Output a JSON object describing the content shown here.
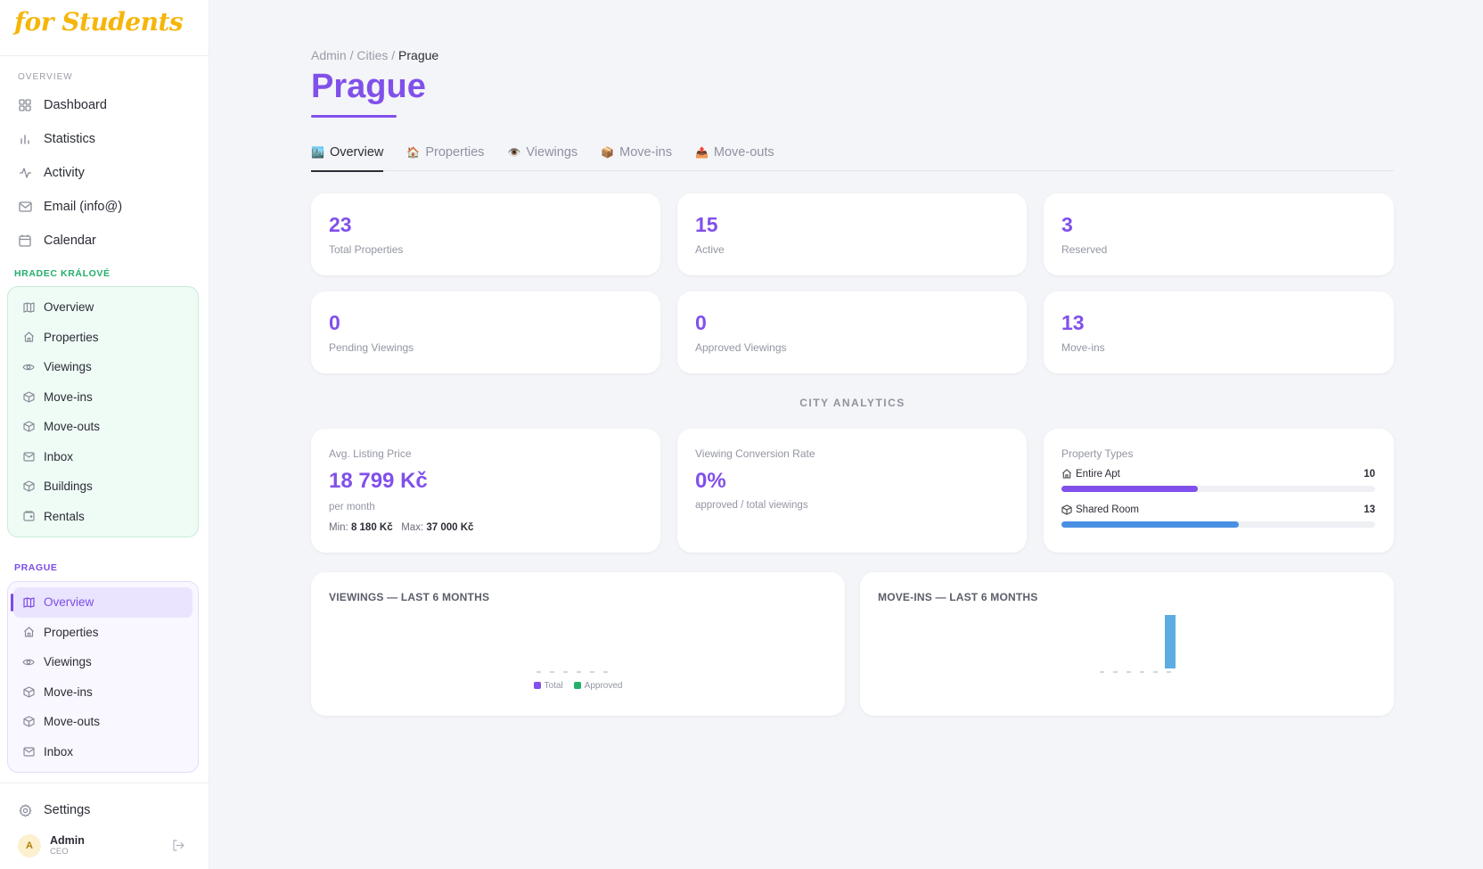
{
  "app": {
    "logo_text": "for Students"
  },
  "sidebar": {
    "overview_label": "OVERVIEW",
    "main_items": [
      {
        "label": "Dashboard",
        "icon": "grid-icon"
      },
      {
        "label": "Statistics",
        "icon": "bar-chart-icon"
      },
      {
        "label": "Activity",
        "icon": "activity-icon"
      },
      {
        "label": "Email (info@)",
        "icon": "mail-icon"
      },
      {
        "label": "Calendar",
        "icon": "calendar-icon"
      }
    ],
    "groups": [
      {
        "label": "HRADEC KRÁLOVÉ",
        "color": "#22b06b",
        "items": [
          "Overview",
          "Properties",
          "Viewings",
          "Move-ins",
          "Move-outs",
          "Inbox",
          "Buildings",
          "Rentals"
        ]
      },
      {
        "label": "PRAGUE",
        "color": "#7c4ce8",
        "active_item": "Overview",
        "items": [
          "Overview",
          "Properties",
          "Viewings",
          "Move-ins",
          "Move-outs",
          "Inbox"
        ]
      }
    ],
    "settings_label": "Settings",
    "user": {
      "initial": "A",
      "name": "Admin",
      "role": "CEO"
    }
  },
  "breadcrumb": {
    "part1": "Admin /",
    "part2": "Cities /",
    "current": "Prague"
  },
  "page": {
    "title": "Prague"
  },
  "tabs": [
    {
      "label": "Overview",
      "emoji": "🏙️",
      "active": true
    },
    {
      "label": "Properties",
      "emoji": "🏠",
      "active": false
    },
    {
      "label": "Viewings",
      "emoji": "👁️",
      "active": false
    },
    {
      "label": "Move-ins",
      "emoji": "📦",
      "active": false
    },
    {
      "label": "Move-outs",
      "emoji": "📤",
      "active": false
    }
  ],
  "stats": [
    {
      "value": "23",
      "label": "Total Properties"
    },
    {
      "value": "15",
      "label": "Active"
    },
    {
      "value": "3",
      "label": "Reserved"
    },
    {
      "value": "0",
      "label": "Pending Viewings"
    },
    {
      "value": "0",
      "label": "Approved Viewings"
    },
    {
      "value": "13",
      "label": "Move-ins"
    }
  ],
  "analytics": {
    "heading": "CITY ANALYTICS",
    "avg_price": {
      "title": "Avg. Listing Price",
      "value": "18 799 Kč",
      "sub": "per month",
      "min_label": "Min:",
      "min_value": "8 180 Kč",
      "max_label": "Max:",
      "max_value": "37 000 Kč"
    },
    "conversion": {
      "title": "Viewing Conversion Rate",
      "value": "0%",
      "sub": "approved / total viewings"
    },
    "property_types": {
      "title": "Property Types",
      "rows": [
        {
          "label": "Entire Apt",
          "count": "10",
          "fraction": 0.435,
          "color": "#8150eb",
          "icon": "home-icon"
        },
        {
          "label": "Shared Room",
          "count": "13",
          "fraction": 0.565,
          "color": "#4a90e2",
          "icon": "box-icon"
        }
      ]
    }
  },
  "colors": {
    "accent": "#8150eb",
    "green": "#22b06b",
    "blue": "#5dade2"
  },
  "chart_data": [
    {
      "type": "bar",
      "title": "VIEWINGS — LAST 6 MONTHS",
      "categories": [
        "",
        "",
        "",
        "",
        "",
        ""
      ],
      "series": [
        {
          "name": "Total",
          "values": [
            0,
            0,
            0,
            0,
            0,
            0
          ],
          "color": "#8150eb"
        },
        {
          "name": "Approved",
          "values": [
            0,
            0,
            0,
            0,
            0,
            0
          ],
          "color": "#22b06b"
        }
      ],
      "legend": "bottom"
    },
    {
      "type": "bar",
      "title": "MOVE-INS — LAST 6 MONTHS",
      "categories": [
        "",
        "",
        "",
        "",
        "",
        ""
      ],
      "series": [
        {
          "values": [
            0,
            0,
            0,
            0,
            0,
            13
          ],
          "color": "#5dade2"
        }
      ]
    }
  ]
}
